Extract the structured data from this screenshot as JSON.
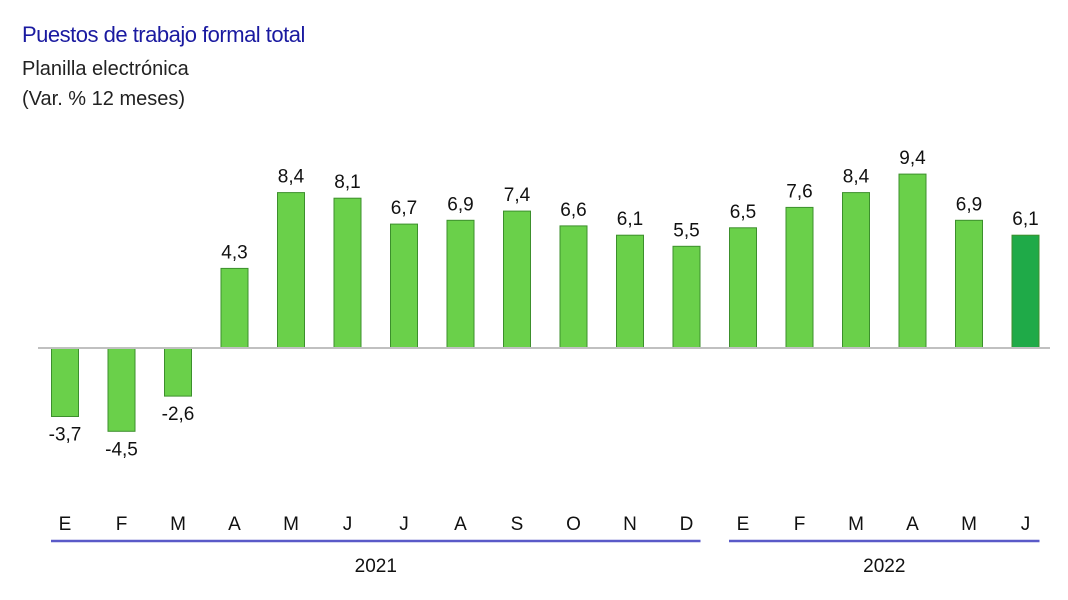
{
  "title": "Puestos de trabajo formal total",
  "subtitle": "Planilla electrónica",
  "unit": "(Var. % 12 meses)",
  "colors": {
    "title": "#1a1aa0",
    "bar": "#6ad04a",
    "bar_highlight": "#1faa48",
    "bar_border": "#3c8f2c",
    "axis": "#c0c0c0",
    "year_line": "#5a5ac8"
  },
  "chart_data": {
    "type": "bar",
    "title": "Puestos de trabajo formal total",
    "subtitle": "Planilla electrónica",
    "ylabel": "(Var. % 12 meses)",
    "xlabel": "",
    "categories": [
      "E",
      "F",
      "M",
      "A",
      "M",
      "J",
      "J",
      "A",
      "S",
      "O",
      "N",
      "D",
      "E",
      "F",
      "M",
      "A",
      "M",
      "J"
    ],
    "values": [
      -3.7,
      -4.5,
      -2.6,
      4.3,
      8.4,
      8.1,
      6.7,
      6.9,
      7.4,
      6.6,
      6.1,
      5.5,
      6.5,
      7.6,
      8.4,
      9.4,
      6.9,
      6.1
    ],
    "value_labels": [
      "-3,7",
      "-4,5",
      "-2,6",
      "4,3",
      "8,4",
      "8,1",
      "6,7",
      "6,9",
      "7,4",
      "6,6",
      "6,1",
      "5,5",
      "6,5",
      "7,6",
      "8,4",
      "9,4",
      "6,9",
      "6,1"
    ],
    "highlight_index": 17,
    "year_groups": [
      {
        "label": "2021",
        "start": 0,
        "end": 11
      },
      {
        "label": "2022",
        "start": 12,
        "end": 17
      }
    ],
    "grid": false,
    "legend": "none"
  }
}
